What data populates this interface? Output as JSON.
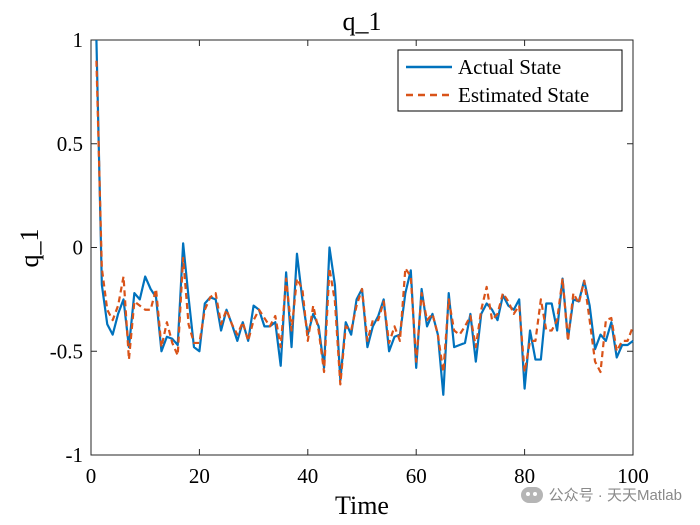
{
  "chart_data": {
    "type": "line",
    "title": "q_1",
    "xlabel": "Time",
    "ylabel": "q_1",
    "xlim": [
      0,
      100
    ],
    "ylim": [
      -1,
      1
    ],
    "xticks": [
      "0",
      "20",
      "40",
      "60",
      "80",
      "100"
    ],
    "yticks": [
      "1",
      "0.5",
      "0",
      "-0.5",
      "-1"
    ],
    "legend_position": "top-right",
    "grid": false,
    "x": [
      1,
      2,
      3,
      4,
      5,
      6,
      7,
      8,
      9,
      10,
      11,
      12,
      13,
      14,
      15,
      16,
      17,
      18,
      19,
      20,
      21,
      22,
      23,
      24,
      25,
      26,
      27,
      28,
      29,
      30,
      31,
      32,
      33,
      34,
      35,
      36,
      37,
      38,
      39,
      40,
      41,
      42,
      43,
      44,
      45,
      46,
      47,
      48,
      49,
      50,
      51,
      52,
      53,
      54,
      55,
      56,
      57,
      58,
      59,
      60,
      61,
      62,
      63,
      64,
      65,
      66,
      67,
      68,
      69,
      70,
      71,
      72,
      73,
      74,
      75,
      76,
      77,
      78,
      79,
      80,
      81,
      82,
      83,
      84,
      85,
      86,
      87,
      88,
      89,
      90,
      91,
      92,
      93,
      94,
      95,
      96,
      97,
      98,
      99,
      100
    ],
    "series": [
      {
        "name": "Actual State",
        "color": "#0072BD",
        "style": "solid",
        "values": [
          1.0,
          -0.18,
          -0.37,
          -0.42,
          -0.32,
          -0.25,
          -0.48,
          -0.22,
          -0.25,
          -0.14,
          -0.2,
          -0.24,
          -0.5,
          -0.43,
          -0.44,
          -0.47,
          0.02,
          -0.24,
          -0.48,
          -0.5,
          -0.27,
          -0.24,
          -0.25,
          -0.4,
          -0.3,
          -0.37,
          -0.45,
          -0.36,
          -0.45,
          -0.28,
          -0.3,
          -0.38,
          -0.38,
          -0.36,
          -0.57,
          -0.12,
          -0.48,
          -0.03,
          -0.25,
          -0.42,
          -0.32,
          -0.38,
          -0.58,
          0.0,
          -0.18,
          -0.64,
          -0.36,
          -0.42,
          -0.25,
          -0.2,
          -0.48,
          -0.38,
          -0.33,
          -0.25,
          -0.5,
          -0.43,
          -0.42,
          -0.22,
          -0.11,
          -0.58,
          -0.2,
          -0.38,
          -0.32,
          -0.42,
          -0.71,
          -0.22,
          -0.48,
          -0.47,
          -0.46,
          -0.32,
          -0.55,
          -0.32,
          -0.27,
          -0.3,
          -0.35,
          -0.23,
          -0.28,
          -0.3,
          -0.25,
          -0.68,
          -0.4,
          -0.54,
          -0.54,
          -0.27,
          -0.27,
          -0.4,
          -0.15,
          -0.44,
          -0.25,
          -0.26,
          -0.16,
          -0.28,
          -0.49,
          -0.42,
          -0.45,
          -0.36,
          -0.53,
          -0.47,
          -0.47,
          -0.45
        ]
      },
      {
        "name": "Estimated State",
        "color": "#D95319",
        "style": "dashed",
        "values": [
          0.9,
          -0.1,
          -0.3,
          -0.35,
          -0.28,
          -0.14,
          -0.54,
          -0.26,
          -0.28,
          -0.3,
          -0.3,
          -0.2,
          -0.48,
          -0.36,
          -0.46,
          -0.52,
          -0.05,
          -0.37,
          -0.46,
          -0.46,
          -0.3,
          -0.24,
          -0.22,
          -0.37,
          -0.3,
          -0.37,
          -0.42,
          -0.36,
          -0.45,
          -0.35,
          -0.3,
          -0.34,
          -0.38,
          -0.33,
          -0.48,
          -0.15,
          -0.4,
          -0.15,
          -0.2,
          -0.45,
          -0.28,
          -0.4,
          -0.6,
          -0.1,
          -0.26,
          -0.66,
          -0.38,
          -0.4,
          -0.28,
          -0.2,
          -0.45,
          -0.35,
          -0.35,
          -0.26,
          -0.46,
          -0.38,
          -0.45,
          -0.1,
          -0.14,
          -0.55,
          -0.22,
          -0.35,
          -0.32,
          -0.42,
          -0.6,
          -0.25,
          -0.4,
          -0.42,
          -0.38,
          -0.33,
          -0.48,
          -0.3,
          -0.19,
          -0.35,
          -0.32,
          -0.22,
          -0.26,
          -0.32,
          -0.28,
          -0.6,
          -0.45,
          -0.45,
          -0.25,
          -0.4,
          -0.4,
          -0.35,
          -0.15,
          -0.45,
          -0.22,
          -0.27,
          -0.16,
          -0.35,
          -0.55,
          -0.6,
          -0.35,
          -0.34,
          -0.5,
          -0.45,
          -0.45,
          -0.38
        ]
      }
    ]
  },
  "watermark": {
    "text": "公众号 · 天天Matlab",
    "icon": "wechat-icon"
  }
}
